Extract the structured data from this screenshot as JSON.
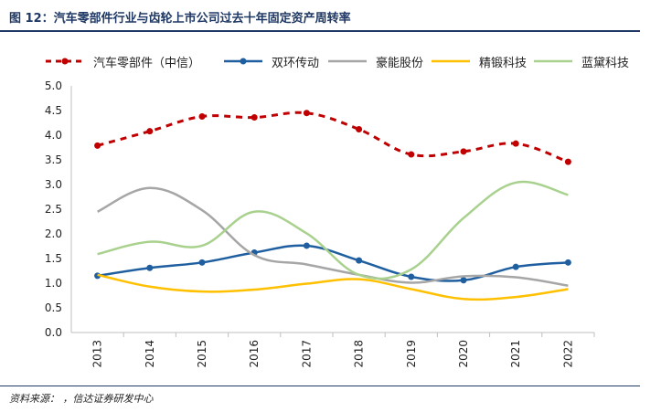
{
  "header": {
    "title": "图 12：汽车零部件行业与齿轮上市公司过去十年固定资产周转率"
  },
  "footer": {
    "source": "资料来源：     ，信达证券研发中心"
  },
  "chart_data": {
    "type": "line",
    "x": [
      "2013",
      "2014",
      "2015",
      "2016",
      "2017",
      "2018",
      "2019",
      "2020",
      "2021",
      "2022"
    ],
    "ylim": [
      0,
      5.0
    ],
    "yticks": [
      "0.0",
      "0.5",
      "1.0",
      "1.5",
      "2.0",
      "2.5",
      "3.0",
      "3.5",
      "4.0",
      "4.5",
      "5.0"
    ],
    "grid": false,
    "legend_position": "top",
    "series": [
      {
        "name": "汽车零部件（中信）",
        "color": "#c00000",
        "style": "dashed-markers",
        "values": [
          3.79,
          4.08,
          4.38,
          4.36,
          4.45,
          4.12,
          3.61,
          3.67,
          3.83,
          3.46
        ]
      },
      {
        "name": "双环传动",
        "color": "#1f5fa0",
        "style": "solid-markers",
        "values": [
          1.15,
          1.31,
          1.42,
          1.62,
          1.76,
          1.46,
          1.13,
          1.06,
          1.33,
          1.42
        ]
      },
      {
        "name": "豪能股份",
        "color": "#a6a6a6",
        "style": "smooth",
        "values": [
          2.45,
          2.93,
          2.48,
          1.57,
          1.38,
          1.17,
          1.01,
          1.14,
          1.12,
          0.95
        ]
      },
      {
        "name": "精锻科技",
        "color": "#ffc000",
        "style": "smooth",
        "values": [
          1.17,
          0.93,
          0.83,
          0.87,
          0.99,
          1.08,
          0.88,
          0.68,
          0.72,
          0.88
        ]
      },
      {
        "name": "蓝黛科技",
        "color": "#a9d18e",
        "style": "smooth",
        "values": [
          1.59,
          1.84,
          1.76,
          2.45,
          2.01,
          1.17,
          1.28,
          2.32,
          3.04,
          2.79
        ]
      }
    ]
  }
}
